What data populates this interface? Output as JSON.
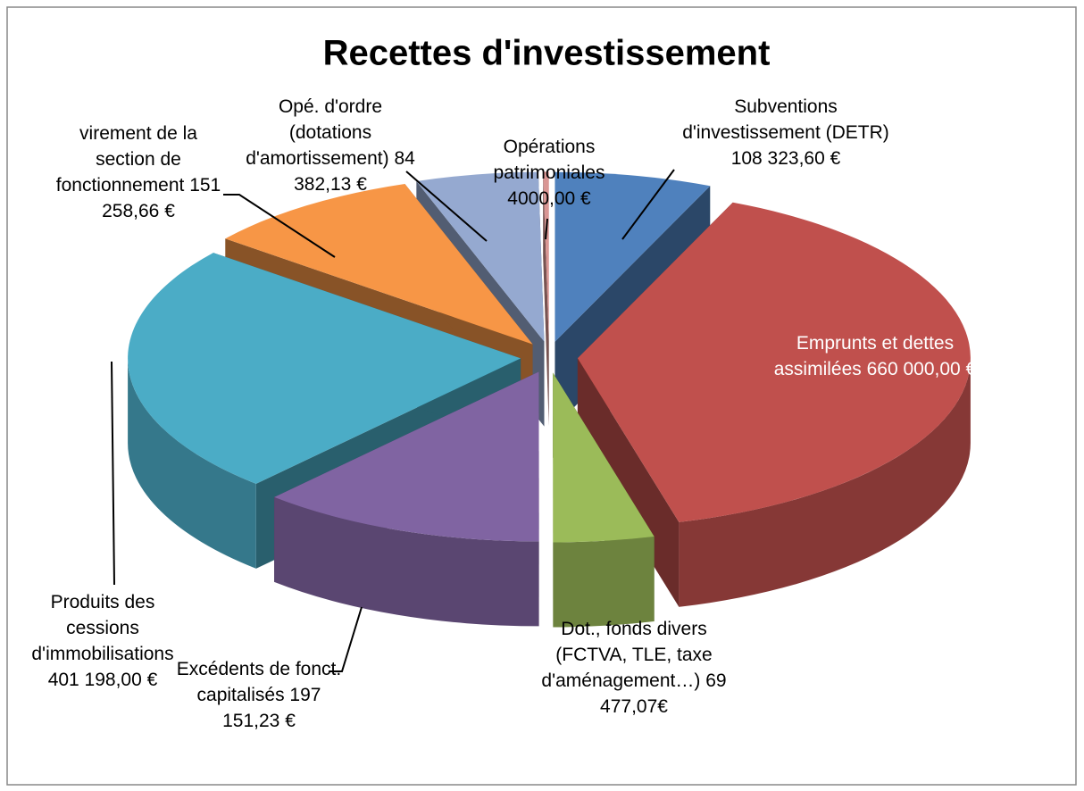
{
  "chart_data": {
    "type": "pie",
    "title": "Recettes d'investissement",
    "categories": [
      "Subventions d'investissement (DETR)",
      "Emprunts et dettes assimilées",
      "Dot., fonds divers (FCTVA, TLE, taxe d'aménagement…)",
      "Excédents de fonct. capitalisés",
      "Produits des cessions d'immobilisations",
      "virement de la section de fonctionnement",
      "Opé. d'ordre (dotations d'amortissement)",
      "Opérations patrimoniales"
    ],
    "values": [
      108323.6,
      660000.0,
      69477.07,
      197151.23,
      401198.0,
      151258.66,
      84382.13,
      4000.0
    ],
    "value_labels": [
      "108 323,60 €",
      "660 000,00 €",
      "69 477,07€",
      "197 151,23 €",
      "401 198,00 €",
      "151 258,66 €",
      "84 382,13 €",
      "4000,00 €"
    ],
    "colors": [
      "#4f81bd",
      "#c0504d",
      "#9bbb59",
      "#8064a2",
      "#4bacc6",
      "#f79646",
      "#95a9d0",
      "#d99694"
    ]
  }
}
